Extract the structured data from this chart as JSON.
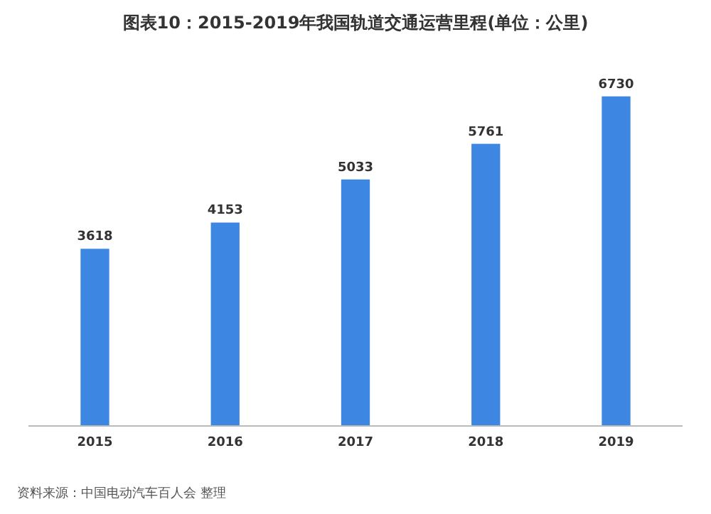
{
  "chart_data": {
    "type": "bar",
    "title": "图表10：2015-2019年我国轨道交通运营里程(单位：公里)",
    "categories": [
      "2015",
      "2016",
      "2017",
      "2018",
      "2019"
    ],
    "values": [
      3618,
      4153,
      5033,
      5761,
      6730
    ],
    "color": "#3d86e2",
    "data_labels": true,
    "annotations": [
      "资料来源：中国电动汽车百人会 整理"
    ]
  }
}
